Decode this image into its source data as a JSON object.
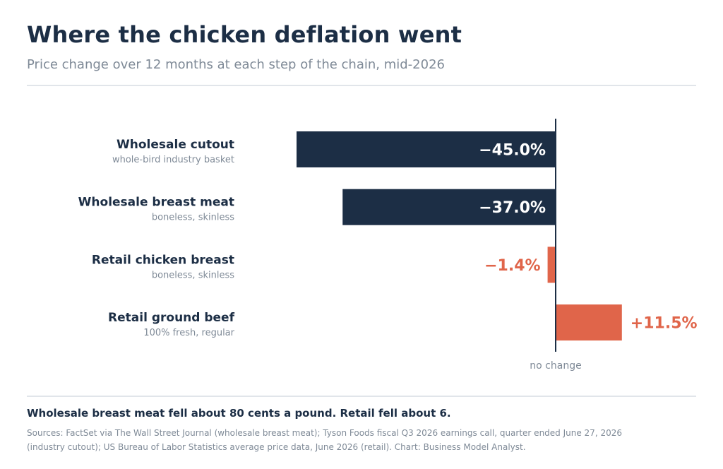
{
  "header": {
    "title": "Where the chicken deflation went",
    "subtitle": "Price change over 12 months at each step of the chain, mid-2026"
  },
  "chart_data": {
    "type": "bar",
    "orientation": "horizontal",
    "categories": [
      "Wholesale cutout",
      "Wholesale breast meat",
      "Retail chicken breast",
      "Retail ground beef"
    ],
    "category_notes": [
      "whole-bird industry basket",
      "boneless, skinless",
      "boneless, skinless",
      "100% fresh, regular"
    ],
    "values": [
      -45.0,
      -37.0,
      -1.4,
      11.5
    ],
    "value_labels": [
      "−45.0%",
      "−37.0%",
      "−1.4%",
      "+11.5%"
    ],
    "bar_colors": [
      "#1c2e45",
      "#1c2e45",
      "#e0654a",
      "#e0654a"
    ],
    "zero_label": "no change",
    "xlim": [
      -45,
      11.5
    ]
  },
  "footer": {
    "note": "Wholesale breast meat fell about 80 cents a pound. Retail fell about 6.",
    "sources": "Sources: FactSet via The Wall Street Journal (wholesale breast meat); Tyson Foods fiscal Q3 2026 earnings call, quarter ended June 27, 2026 (industry cutout); US Bureau of Labor Statistics average price data, June 2026 (retail). Chart: Business Model Analyst."
  },
  "colors": {
    "dark": "#1c2e45",
    "accent": "#e0654a",
    "muted": "#7f8a97",
    "rule": "#e1e5ea"
  }
}
